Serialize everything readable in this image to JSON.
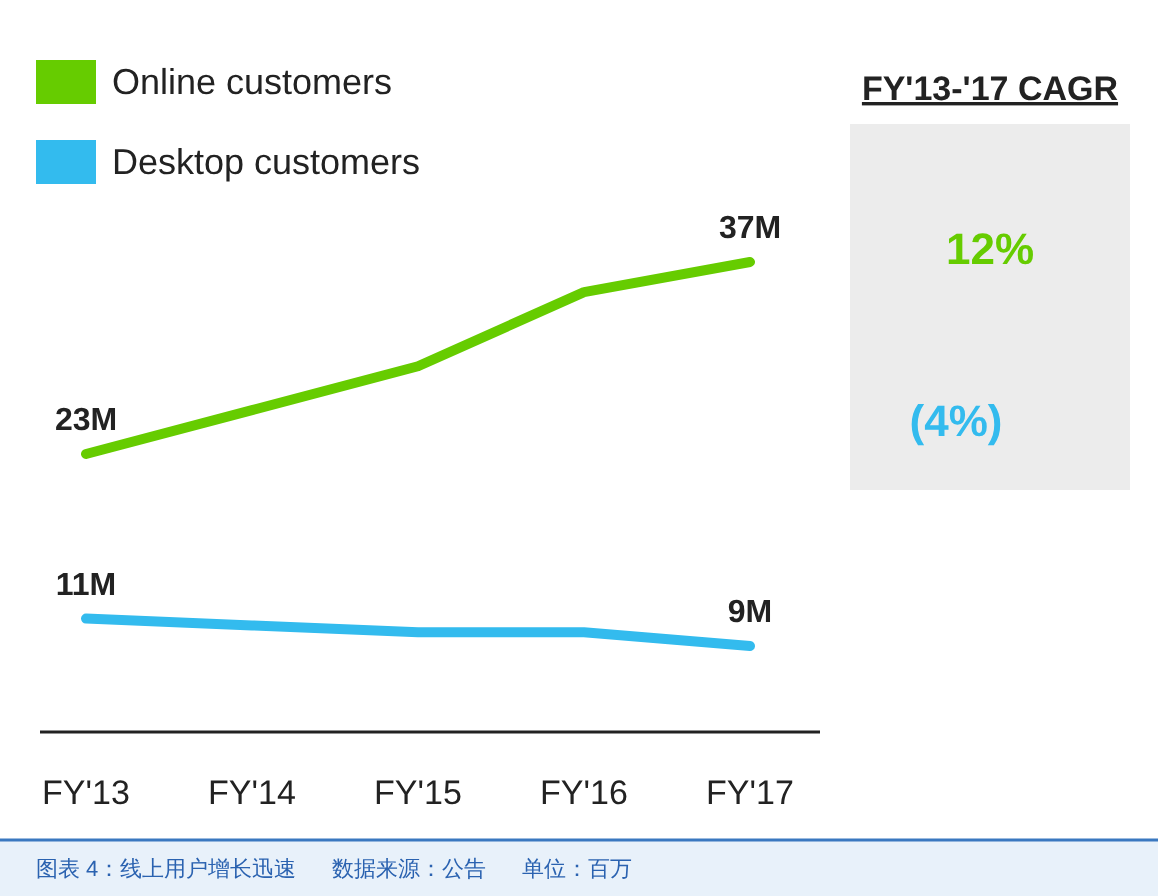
{
  "chart_data": {
    "type": "line",
    "categories": [
      "FY'13",
      "FY'14",
      "FY'15",
      "FY'16",
      "FY'17"
    ],
    "series": [
      {
        "name": "Online customers",
        "color": "#66cc00",
        "values": [
          23,
          26.2,
          29.4,
          34.8,
          37
        ],
        "value_labels": [
          "23M",
          null,
          null,
          null,
          "37M"
        ]
      },
      {
        "name": "Desktop customers",
        "color": "#33bbee",
        "values": [
          11,
          10.5,
          10,
          10,
          9
        ],
        "value_labels": [
          "11M",
          null,
          null,
          null,
          "9M"
        ]
      }
    ],
    "tick_labels": "x",
    "legend": "top left",
    "grid": false,
    "marker": "none",
    "line_style": "solid",
    "annotations": [
      "FY'13-'17 CAGR",
      "12%",
      "(4%)",
      "图表 4：线上用户增长迅速",
      "数据来源：公告",
      "单位：百万"
    ]
  }
}
